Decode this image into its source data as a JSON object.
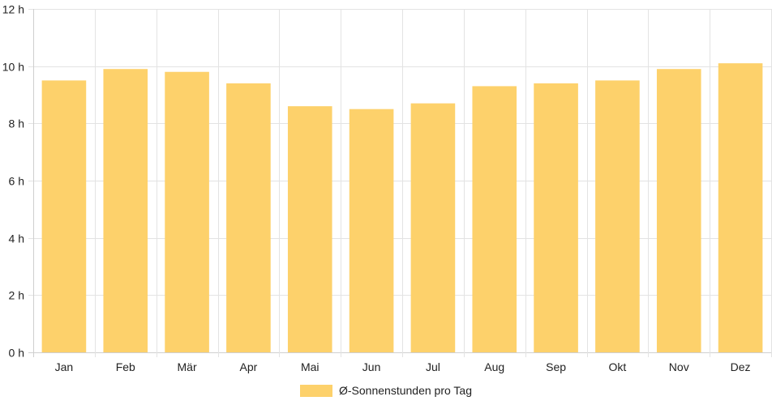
{
  "chart_data": {
    "type": "bar",
    "categories": [
      "Jan",
      "Feb",
      "Mär",
      "Apr",
      "Mai",
      "Jun",
      "Jul",
      "Aug",
      "Sep",
      "Okt",
      "Nov",
      "Dez"
    ],
    "series": [
      {
        "name": "Ø-Sonnenstunden pro Tag",
        "values": [
          9.5,
          9.9,
          9.8,
          9.4,
          8.6,
          8.5,
          8.7,
          9.3,
          9.4,
          9.5,
          9.9,
          10.1
        ],
        "color": "#fdd16b"
      }
    ],
    "ylim": [
      0,
      12
    ],
    "yticks": [
      0,
      2,
      4,
      6,
      8,
      10,
      12
    ],
    "ytick_labels": [
      "0 h",
      "2 h",
      "4 h",
      "6 h",
      "8 h",
      "10 h",
      "12 h"
    ],
    "title": "",
    "xlabel": "",
    "ylabel": "",
    "grid": true,
    "legend_position": "bottom"
  }
}
